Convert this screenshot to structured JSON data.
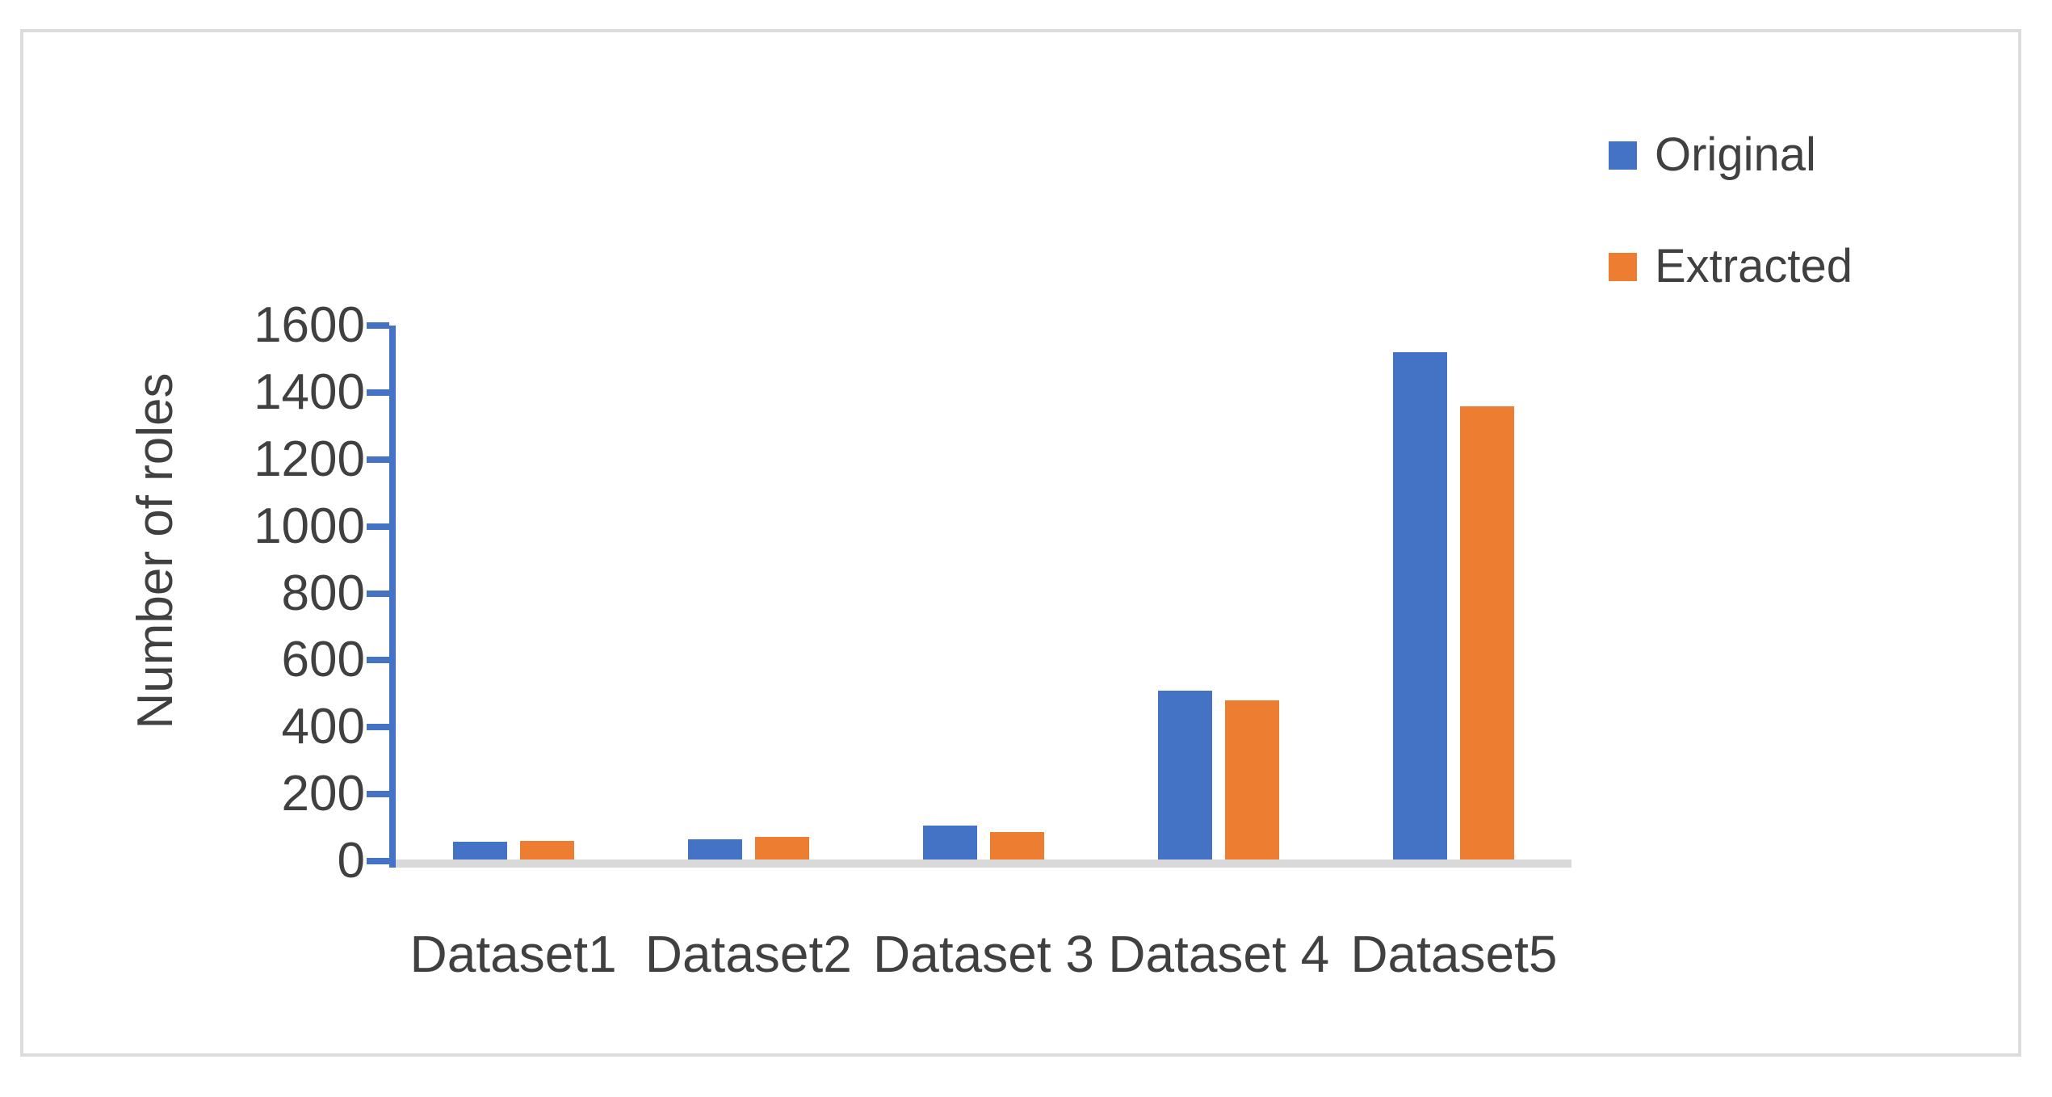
{
  "chart_data": {
    "type": "bar",
    "title": "",
    "categories": [
      "Dataset1",
      "Dataset2",
      "Dataset 3",
      "Dataset 4",
      "Dataset5"
    ],
    "series": [
      {
        "name": "Original",
        "color": "#4472C4",
        "values": [
          58,
          65,
          107,
          510,
          1520
        ]
      },
      {
        "name": "Extracted",
        "color": "#ED7D31",
        "values": [
          60,
          73,
          86,
          480,
          1358
        ]
      }
    ],
    "xlabel": "",
    "ylabel": "Number of roles",
    "ylim": [
      0,
      1600
    ],
    "ytick_step": 200,
    "ytick_labels": [
      "0",
      "200",
      "400",
      "600",
      "800",
      "1000",
      "1200",
      "1400",
      "1600"
    ],
    "grid": false,
    "legend_position": "top-right"
  },
  "colors": {
    "axis": "#4472C4",
    "baseline": "#D9D9D9",
    "text": "#404040",
    "frame_border": "#DCDCDC",
    "background": "#FFFFFF"
  }
}
